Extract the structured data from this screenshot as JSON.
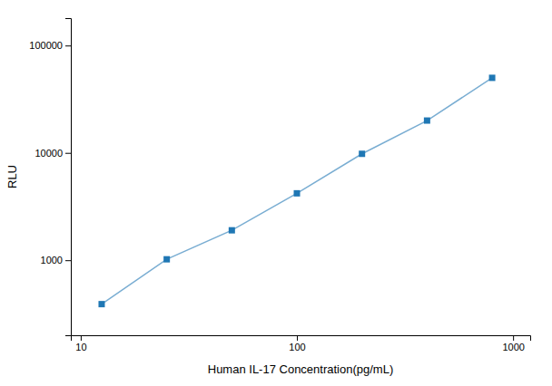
{
  "chart_data": {
    "type": "line",
    "x": [
      12.5,
      25,
      50,
      100,
      200,
      400,
      800
    ],
    "values": [
      390,
      1020,
      1900,
      4200,
      9800,
      20000,
      50000
    ],
    "xlabel": "Human IL-17 Concentration(pg/mL)",
    "ylabel": "RLU",
    "xlim": [
      9,
      1200
    ],
    "ylim": [
      200,
      180000
    ],
    "xticks": [
      10,
      100,
      1000
    ],
    "yticks": [
      1000,
      10000,
      100000
    ],
    "log": true,
    "marker": "square",
    "grid": false
  }
}
